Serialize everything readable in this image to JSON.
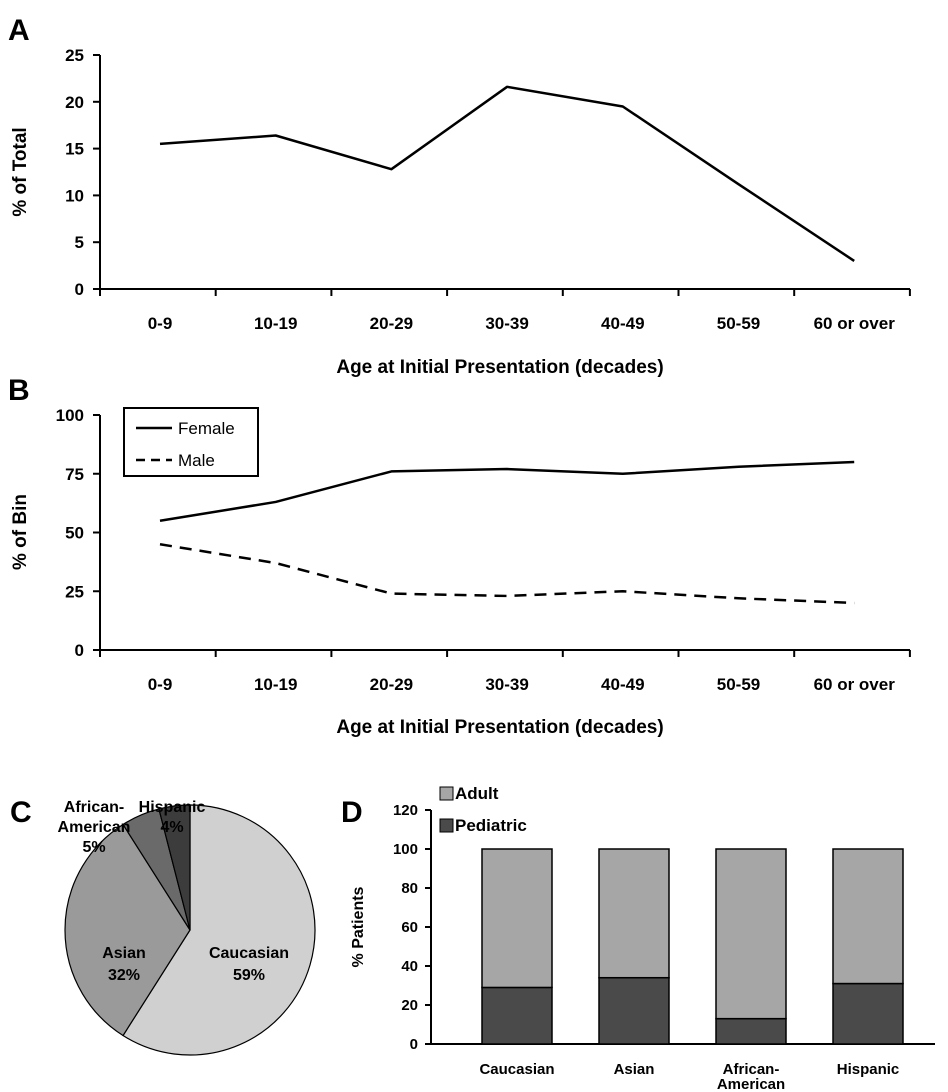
{
  "chart_data": [
    {
      "panel": "A",
      "type": "line",
      "categories": [
        "0-9",
        "10-19",
        "20-29",
        "30-39",
        "40-49",
        "50-59",
        "60 or over"
      ],
      "series": [
        {
          "values": [
            15.5,
            16.4,
            12.8,
            21.6,
            19.5,
            11.2,
            3.0
          ]
        }
      ],
      "xlabel": "Age at Initial Presentation (decades)",
      "ylabel": "% of Total",
      "ylim": [
        0,
        25
      ],
      "yticks": [
        "0",
        "5",
        "10",
        "15",
        "20",
        "25"
      ],
      "grid": false
    },
    {
      "panel": "B",
      "type": "line",
      "categories": [
        "0-9",
        "10-19",
        "20-29",
        "30-39",
        "40-49",
        "50-59",
        "60 or over"
      ],
      "series": [
        {
          "name": "Female",
          "style": "solid",
          "values": [
            55,
            63,
            76,
            77,
            75,
            78,
            80
          ]
        },
        {
          "name": "Male",
          "style": "dashed",
          "values": [
            45,
            37,
            24,
            23,
            25,
            22,
            20
          ]
        }
      ],
      "xlabel": "Age at Initial Presentation (decades)",
      "ylabel": "% of Bin",
      "ylim": [
        0,
        100
      ],
      "yticks": [
        "0",
        "25",
        "50",
        "75",
        "100"
      ],
      "legend": "top-left",
      "grid": false
    },
    {
      "panel": "C",
      "type": "pie",
      "slices": [
        {
          "name": "Caucasian",
          "label": "59%",
          "value": 59,
          "color": "#d0d0d0"
        },
        {
          "name": "Asian",
          "label": "32%",
          "value": 32,
          "color": "#9a9a9a"
        },
        {
          "name": "African-American",
          "label": "5%",
          "value": 5,
          "color": "#6a6a6a"
        },
        {
          "name": "Hispanic",
          "label": "4%",
          "value": 4,
          "color": "#3c3c3c"
        }
      ]
    },
    {
      "panel": "D",
      "type": "bar",
      "stacked": true,
      "categories": [
        "Caucasian",
        "Asian",
        "African-American",
        "Hispanic"
      ],
      "category_lines": [
        [
          "Caucasian"
        ],
        [
          "Asian"
        ],
        [
          "African-",
          "American"
        ],
        [
          "Hispanic"
        ]
      ],
      "series": [
        {
          "name": "Pediatric",
          "color": "#4a4a4a",
          "values": [
            29,
            34,
            13,
            31
          ]
        },
        {
          "name": "Adult",
          "color": "#a6a6a6",
          "values": [
            71,
            66,
            87,
            69
          ]
        }
      ],
      "legend_order": [
        "Adult",
        "Pediatric"
      ],
      "ylabel": "% Patients",
      "ylim": [
        0,
        120
      ],
      "yticks": [
        "0",
        "20",
        "40",
        "60",
        "80",
        "100",
        "120"
      ],
      "legend": "top-left",
      "grid": false
    }
  ]
}
